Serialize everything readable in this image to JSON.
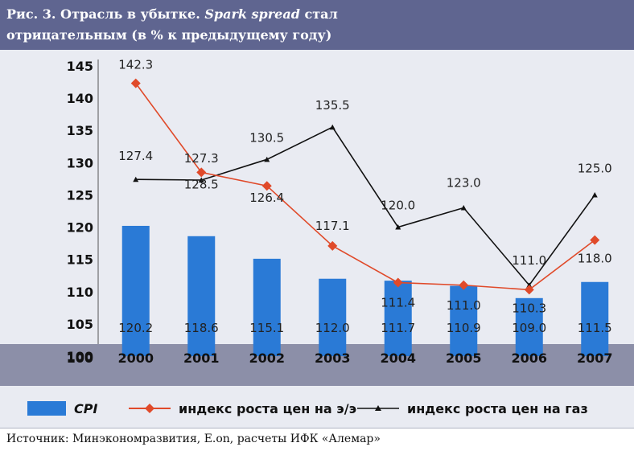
{
  "figure": {
    "title_prefix": "Рис. 3. Отрасль в убытке. ",
    "title_italic": "Spark spread",
    "title_rest": " стал",
    "title_line2": "отрицательным (в % к предыдущему году)",
    "source": "Источник: Минэкономразвития, E.on, расчеты ИФК «Алемар»"
  },
  "colors": {
    "header": "#5f6590",
    "bars": "#2a7ad6",
    "electricity": "#e04a2a",
    "gas": "#111111",
    "axis_band": "#8c8fa8"
  },
  "chart_data": {
    "type": "bar",
    "categories": [
      "2000",
      "2001",
      "2002",
      "2003",
      "2004",
      "2005",
      "2006",
      "2007"
    ],
    "y_ticks": [
      "145",
      "140",
      "135",
      "130",
      "125",
      "120",
      "115",
      "110",
      "105",
      "100"
    ],
    "ylim": [
      100,
      145
    ],
    "grid": false,
    "legend_position": "bottom",
    "series": [
      {
        "name": "CPI",
        "kind": "bar",
        "values": [
          120.2,
          118.6,
          115.1,
          112.0,
          111.7,
          110.9,
          109.0,
          111.5
        ],
        "labels": [
          "120.2",
          "118.6",
          "115.1",
          "112.0",
          "111.7",
          "110.9",
          "109.0",
          "111.5"
        ]
      },
      {
        "name": "индекс роста цен на э/э",
        "kind": "line",
        "marker": "diamond",
        "values": [
          142.3,
          128.5,
          126.4,
          117.1,
          111.4,
          111.0,
          110.3,
          118.0
        ],
        "labels": [
          "142.3",
          "128.5",
          "126.4",
          "117.1",
          "111.4",
          "111.0",
          "110.3",
          "118.0"
        ]
      },
      {
        "name": "индекс роста цен на газ",
        "kind": "line",
        "marker": "triangle",
        "values": [
          127.4,
          127.3,
          130.5,
          135.5,
          120.0,
          123.0,
          111.0,
          125.0
        ],
        "labels": [
          "127.4",
          "127.3",
          "130.5",
          "135.5",
          "120.0",
          "123.0",
          "111.0",
          "125.0"
        ]
      }
    ]
  }
}
